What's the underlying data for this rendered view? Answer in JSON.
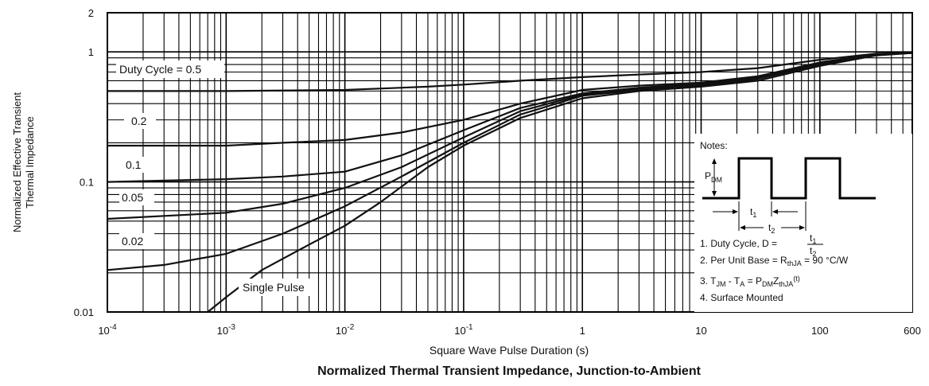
{
  "chart_data": {
    "type": "line",
    "title": "Normalized Thermal Transient Impedance, Junction-to-Ambient",
    "xlabel": "Square Wave Pulse Duration (s)",
    "ylabel_lines": [
      "Normalized Effective Transient",
      "Thermal Impedance"
    ],
    "x_scale": "log",
    "y_scale": "log",
    "xlim": [
      0.0001,
      600
    ],
    "ylim": [
      0.01,
      2
    ],
    "grid": true,
    "x_ticks": [
      {
        "value": 0.0001,
        "base": "10",
        "exp": "-4"
      },
      {
        "value": 0.001,
        "base": "10",
        "exp": "-3"
      },
      {
        "value": 0.01,
        "base": "10",
        "exp": "-2"
      },
      {
        "value": 0.1,
        "base": "10",
        "exp": "-1"
      },
      {
        "value": 1,
        "base": "1",
        "exp": ""
      },
      {
        "value": 10,
        "base": "10",
        "exp": ""
      },
      {
        "value": 100,
        "base": "100",
        "exp": ""
      },
      {
        "value": 600,
        "base": "600",
        "exp": ""
      }
    ],
    "y_ticks": [
      {
        "value": 0.01,
        "label": "0.01"
      },
      {
        "value": 0.1,
        "label": "0.1"
      },
      {
        "value": 1,
        "label": "1"
      },
      {
        "value": 2,
        "label": "2"
      }
    ],
    "series": [
      {
        "name": "Duty Cycle = 0.5",
        "label": "Duty Cycle = 0.5",
        "x": [
          0.0001,
          0.001,
          0.01,
          0.05,
          0.1,
          0.3,
          1,
          3,
          10,
          30,
          100,
          300,
          600
        ],
        "y": [
          0.5,
          0.5,
          0.51,
          0.54,
          0.56,
          0.6,
          0.64,
          0.67,
          0.7,
          0.75,
          0.87,
          0.97,
          0.98
        ]
      },
      {
        "name": "0.2",
        "label": "0.2",
        "x": [
          0.0001,
          0.001,
          0.003,
          0.01,
          0.03,
          0.1,
          0.3,
          1,
          3,
          10,
          30,
          100,
          300,
          600
        ],
        "y": [
          0.19,
          0.19,
          0.2,
          0.21,
          0.24,
          0.3,
          0.4,
          0.51,
          0.55,
          0.58,
          0.65,
          0.83,
          0.96,
          0.98
        ]
      },
      {
        "name": "0.1",
        "label": "0.1",
        "x": [
          0.0001,
          0.001,
          0.003,
          0.01,
          0.03,
          0.1,
          0.3,
          1,
          3,
          10,
          30,
          100,
          300,
          600
        ],
        "y": [
          0.1,
          0.105,
          0.11,
          0.12,
          0.16,
          0.25,
          0.37,
          0.48,
          0.53,
          0.57,
          0.64,
          0.82,
          0.96,
          0.98
        ]
      },
      {
        "name": "0.05",
        "label": "0.05",
        "x": [
          0.0001,
          0.001,
          0.003,
          0.01,
          0.03,
          0.1,
          0.3,
          1,
          3,
          10,
          30,
          100,
          300,
          600
        ],
        "y": [
          0.052,
          0.058,
          0.068,
          0.09,
          0.13,
          0.22,
          0.35,
          0.47,
          0.52,
          0.56,
          0.63,
          0.81,
          0.95,
          0.98
        ]
      },
      {
        "name": "0.02",
        "label": "0.02",
        "x": [
          0.0001,
          0.0003,
          0.001,
          0.003,
          0.01,
          0.03,
          0.1,
          0.3,
          1,
          3,
          10,
          30,
          100,
          300,
          600
        ],
        "y": [
          0.021,
          0.023,
          0.028,
          0.04,
          0.065,
          0.11,
          0.2,
          0.33,
          0.46,
          0.51,
          0.55,
          0.62,
          0.8,
          0.95,
          0.98
        ]
      },
      {
        "name": "Single Pulse",
        "label": "Single Pulse",
        "x": [
          0.0007,
          0.001,
          0.002,
          0.005,
          0.01,
          0.02,
          0.05,
          0.1,
          0.3,
          1,
          3,
          10,
          30,
          100,
          300,
          600
        ],
        "y": [
          0.01,
          0.013,
          0.021,
          0.033,
          0.046,
          0.07,
          0.13,
          0.19,
          0.31,
          0.44,
          0.5,
          0.54,
          0.6,
          0.78,
          0.94,
          0.98
        ]
      }
    ],
    "notes": {
      "heading": "Notes:",
      "pdm": "P",
      "pdm_sub": "DM",
      "t1": "t",
      "t1_sub": "1",
      "t2": "t",
      "t2_sub": "2",
      "n1_prefix": "1. Duty Cycle, D =",
      "n2_prefix": "2. Per Unit Base = R",
      "n2_sub": "thJA",
      "n2_suffix": " = 90 °C/W",
      "n3_a": "3. T",
      "n3_a_sub": "JM",
      "n3_b": " - T",
      "n3_b_sub": "A",
      "n3_c": " = P",
      "n3_c_sub": "DM",
      "n3_d": "Z",
      "n3_d_sub": "thJA",
      "n3_d_sup": "(t)",
      "n4": "4. Surface Mounted"
    }
  }
}
